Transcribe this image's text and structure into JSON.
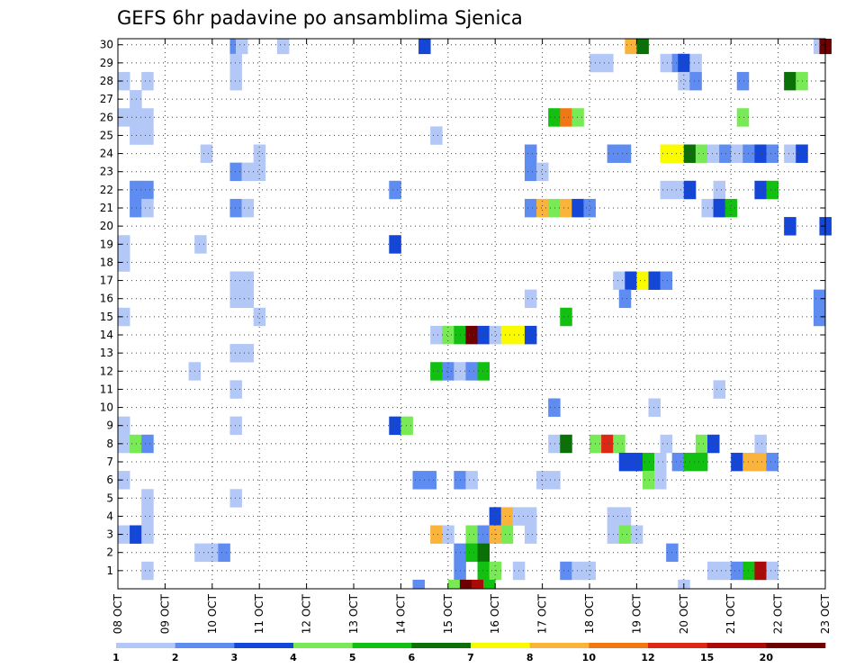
{
  "chart_data": {
    "type": "heatmap",
    "title": "GEFS 6hr padavine po ansamblima Sjenica",
    "x_tick_labels": [
      "08 OCT",
      "09 OCT",
      "10 OCT",
      "11 OCT",
      "12 OCT",
      "13 OCT",
      "14 OCT",
      "15 OCT",
      "16 OCT",
      "17 OCT",
      "18 OCT",
      "19 OCT",
      "20 OCT",
      "21 OCT",
      "22 OCT",
      "23 OCT"
    ],
    "y_tick_labels": [
      "1",
      "2",
      "3",
      "4",
      "5",
      "6",
      "7",
      "8",
      "9",
      "10",
      "11",
      "12",
      "13",
      "14",
      "15",
      "16",
      "17",
      "18",
      "19",
      "20",
      "21",
      "22",
      "23",
      "24",
      "25",
      "26",
      "27",
      "28",
      "29",
      "30"
    ],
    "xlim_hours": [
      0,
      360
    ],
    "ylim_members": [
      0,
      30
    ],
    "step_hours": 6,
    "grid": true,
    "legend_placement": "bottom",
    "legend_labels": [
      "1",
      "2",
      "3",
      "4",
      "5",
      "6",
      "7",
      "8",
      "10",
      "12",
      "15",
      "20"
    ],
    "colors": [
      "#b4c8f8",
      "#5e8cf0",
      "#1446d8",
      "#78ea55",
      "#12c012",
      "#0b7005",
      "#fafa00",
      "#fab43c",
      "#f07814",
      "#dc2814",
      "#aa0a0a",
      "#6e0000"
    ],
    "cells": [
      [
        30,
        57,
        1
      ],
      [
        30,
        60,
        0
      ],
      [
        30,
        81,
        0
      ],
      [
        30,
        153,
        2
      ],
      [
        30,
        258,
        7
      ],
      [
        30,
        264,
        5
      ],
      [
        30,
        354,
        0
      ],
      [
        30,
        357,
        11
      ],
      [
        29,
        57,
        0
      ],
      [
        29,
        240,
        0
      ],
      [
        29,
        246,
        0
      ],
      [
        29,
        276,
        0
      ],
      [
        29,
        282,
        1
      ],
      [
        29,
        285,
        2
      ],
      [
        29,
        291,
        0
      ],
      [
        28,
        0,
        0
      ],
      [
        28,
        12,
        0
      ],
      [
        28,
        57,
        0
      ],
      [
        28,
        285,
        0
      ],
      [
        28,
        291,
        1
      ],
      [
        28,
        315,
        1
      ],
      [
        28,
        339,
        5
      ],
      [
        28,
        345,
        3
      ],
      [
        27,
        6,
        0
      ],
      [
        26,
        0,
        0
      ],
      [
        26,
        6,
        0
      ],
      [
        26,
        12,
        0
      ],
      [
        26,
        219,
        4
      ],
      [
        26,
        225,
        8
      ],
      [
        26,
        231,
        3
      ],
      [
        26,
        315,
        3
      ],
      [
        25,
        6,
        0
      ],
      [
        25,
        12,
        0
      ],
      [
        25,
        159,
        0
      ],
      [
        24,
        42,
        0
      ],
      [
        24,
        69,
        0
      ],
      [
        24,
        207,
        1
      ],
      [
        24,
        249,
        1
      ],
      [
        24,
        255,
        1
      ],
      [
        24,
        276,
        6
      ],
      [
        24,
        282,
        6
      ],
      [
        24,
        288,
        5
      ],
      [
        24,
        294,
        3
      ],
      [
        24,
        300,
        0
      ],
      [
        24,
        306,
        1
      ],
      [
        24,
        312,
        0
      ],
      [
        24,
        318,
        1
      ],
      [
        24,
        324,
        2
      ],
      [
        24,
        330,
        1
      ],
      [
        24,
        339,
        0
      ],
      [
        24,
        345,
        2
      ],
      [
        23,
        57,
        1
      ],
      [
        23,
        63,
        0
      ],
      [
        23,
        69,
        0
      ],
      [
        23,
        207,
        1
      ],
      [
        23,
        213,
        0
      ],
      [
        22,
        6,
        1
      ],
      [
        22,
        12,
        1
      ],
      [
        22,
        138,
        1
      ],
      [
        22,
        276,
        0
      ],
      [
        22,
        282,
        0
      ],
      [
        22,
        288,
        2
      ],
      [
        22,
        303,
        0
      ],
      [
        22,
        324,
        2
      ],
      [
        22,
        330,
        4
      ],
      [
        21,
        6,
        1
      ],
      [
        21,
        12,
        0
      ],
      [
        21,
        57,
        1
      ],
      [
        21,
        63,
        0
      ],
      [
        21,
        207,
        1
      ],
      [
        21,
        213,
        7
      ],
      [
        21,
        219,
        3
      ],
      [
        21,
        225,
        7
      ],
      [
        21,
        231,
        2
      ],
      [
        21,
        237,
        1
      ],
      [
        21,
        297,
        0
      ],
      [
        21,
        303,
        2
      ],
      [
        21,
        309,
        4
      ],
      [
        20,
        339,
        2
      ],
      [
        20,
        357,
        2
      ],
      [
        19,
        0,
        0
      ],
      [
        19,
        39,
        0
      ],
      [
        19,
        138,
        2
      ],
      [
        18,
        0,
        0
      ],
      [
        17,
        57,
        0
      ],
      [
        17,
        63,
        0
      ],
      [
        17,
        252,
        0
      ],
      [
        17,
        258,
        2
      ],
      [
        17,
        264,
        6
      ],
      [
        17,
        270,
        2
      ],
      [
        17,
        276,
        1
      ],
      [
        16,
        57,
        0
      ],
      [
        16,
        63,
        0
      ],
      [
        16,
        207,
        0
      ],
      [
        16,
        255,
        1
      ],
      [
        16,
        354,
        1
      ],
      [
        15,
        0,
        0
      ],
      [
        15,
        69,
        0
      ],
      [
        15,
        225,
        4
      ],
      [
        15,
        354,
        1
      ],
      [
        14,
        159,
        0
      ],
      [
        14,
        165,
        3
      ],
      [
        14,
        171,
        4
      ],
      [
        14,
        177,
        11
      ],
      [
        14,
        183,
        2
      ],
      [
        14,
        189,
        0
      ],
      [
        14,
        195,
        6
      ],
      [
        14,
        201,
        6
      ],
      [
        14,
        207,
        2
      ],
      [
        13,
        57,
        0
      ],
      [
        13,
        63,
        0
      ],
      [
        12,
        36,
        0
      ],
      [
        12,
        159,
        4
      ],
      [
        12,
        165,
        1
      ],
      [
        12,
        171,
        0
      ],
      [
        12,
        177,
        1
      ],
      [
        12,
        183,
        4
      ],
      [
        11,
        57,
        0
      ],
      [
        11,
        303,
        0
      ],
      [
        10,
        219,
        1
      ],
      [
        10,
        270,
        0
      ],
      [
        9,
        0,
        0
      ],
      [
        9,
        57,
        0
      ],
      [
        9,
        138,
        2
      ],
      [
        9,
        144,
        3
      ],
      [
        8,
        0,
        0
      ],
      [
        8,
        6,
        3
      ],
      [
        8,
        12,
        1
      ],
      [
        8,
        219,
        0
      ],
      [
        8,
        225,
        5
      ],
      [
        8,
        240,
        3
      ],
      [
        8,
        246,
        9
      ],
      [
        8,
        252,
        3
      ],
      [
        8,
        276,
        0
      ],
      [
        8,
        294,
        3
      ],
      [
        8,
        300,
        2
      ],
      [
        8,
        324,
        0
      ],
      [
        7,
        255,
        2
      ],
      [
        7,
        261,
        2
      ],
      [
        7,
        267,
        4
      ],
      [
        7,
        273,
        0
      ],
      [
        7,
        282,
        1
      ],
      [
        7,
        288,
        4
      ],
      [
        7,
        294,
        4
      ],
      [
        7,
        312,
        2
      ],
      [
        7,
        318,
        7
      ],
      [
        7,
        324,
        7
      ],
      [
        7,
        330,
        1
      ],
      [
        6,
        0,
        0
      ],
      [
        6,
        150,
        1
      ],
      [
        6,
        156,
        1
      ],
      [
        6,
        171,
        1
      ],
      [
        6,
        177,
        0
      ],
      [
        6,
        213,
        0
      ],
      [
        6,
        219,
        0
      ],
      [
        6,
        267,
        3
      ],
      [
        6,
        273,
        0
      ],
      [
        5,
        12,
        0
      ],
      [
        5,
        57,
        0
      ],
      [
        4,
        12,
        0
      ],
      [
        4,
        189,
        2
      ],
      [
        4,
        195,
        7
      ],
      [
        4,
        201,
        0
      ],
      [
        4,
        207,
        0
      ],
      [
        4,
        249,
        0
      ],
      [
        4,
        255,
        0
      ],
      [
        3,
        0,
        0
      ],
      [
        3,
        6,
        2
      ],
      [
        3,
        12,
        0
      ],
      [
        3,
        159,
        7
      ],
      [
        3,
        165,
        0
      ],
      [
        3,
        177,
        3
      ],
      [
        3,
        183,
        1
      ],
      [
        3,
        189,
        7
      ],
      [
        3,
        195,
        3
      ],
      [
        3,
        207,
        0
      ],
      [
        3,
        249,
        0
      ],
      [
        3,
        255,
        3
      ],
      [
        3,
        261,
        0
      ],
      [
        2,
        39,
        0
      ],
      [
        2,
        45,
        0
      ],
      [
        2,
        51,
        1
      ],
      [
        2,
        171,
        1
      ],
      [
        2,
        177,
        4
      ],
      [
        2,
        183,
        5
      ],
      [
        2,
        279,
        1
      ],
      [
        1,
        12,
        0
      ],
      [
        1,
        171,
        1
      ],
      [
        1,
        183,
        4
      ],
      [
        1,
        189,
        3
      ],
      [
        1,
        201,
        0
      ],
      [
        1,
        225,
        1
      ],
      [
        1,
        231,
        0
      ],
      [
        1,
        237,
        0
      ],
      [
        1,
        300,
        0
      ],
      [
        1,
        306,
        0
      ],
      [
        1,
        312,
        1
      ],
      [
        1,
        318,
        4
      ],
      [
        1,
        324,
        10
      ],
      [
        1,
        330,
        0
      ],
      [
        0,
        150,
        1
      ],
      [
        0,
        168,
        3
      ],
      [
        0,
        174,
        11
      ],
      [
        0,
        180,
        10
      ],
      [
        0,
        186,
        4
      ],
      [
        0,
        285,
        0
      ]
    ]
  }
}
